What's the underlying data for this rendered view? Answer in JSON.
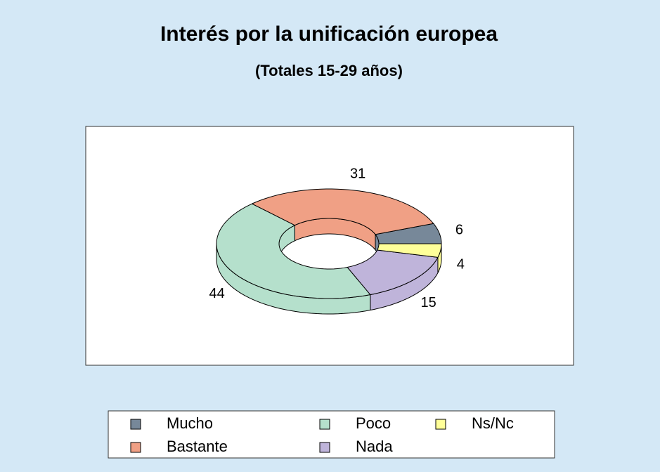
{
  "chart_data": {
    "type": "donut",
    "title": "Interés por la unificación europea",
    "subtitle": "(Totales 15-29 años)",
    "categories": [
      "Mucho",
      "Bastante",
      "Poco",
      "Nada",
      "Ns/Nc"
    ],
    "values": [
      6,
      31,
      44,
      15,
      4
    ],
    "colors": [
      "#778899",
      "#f0a085",
      "#b5e0cc",
      "#bfb4da",
      "#ffff99"
    ],
    "legend": "bottom"
  }
}
